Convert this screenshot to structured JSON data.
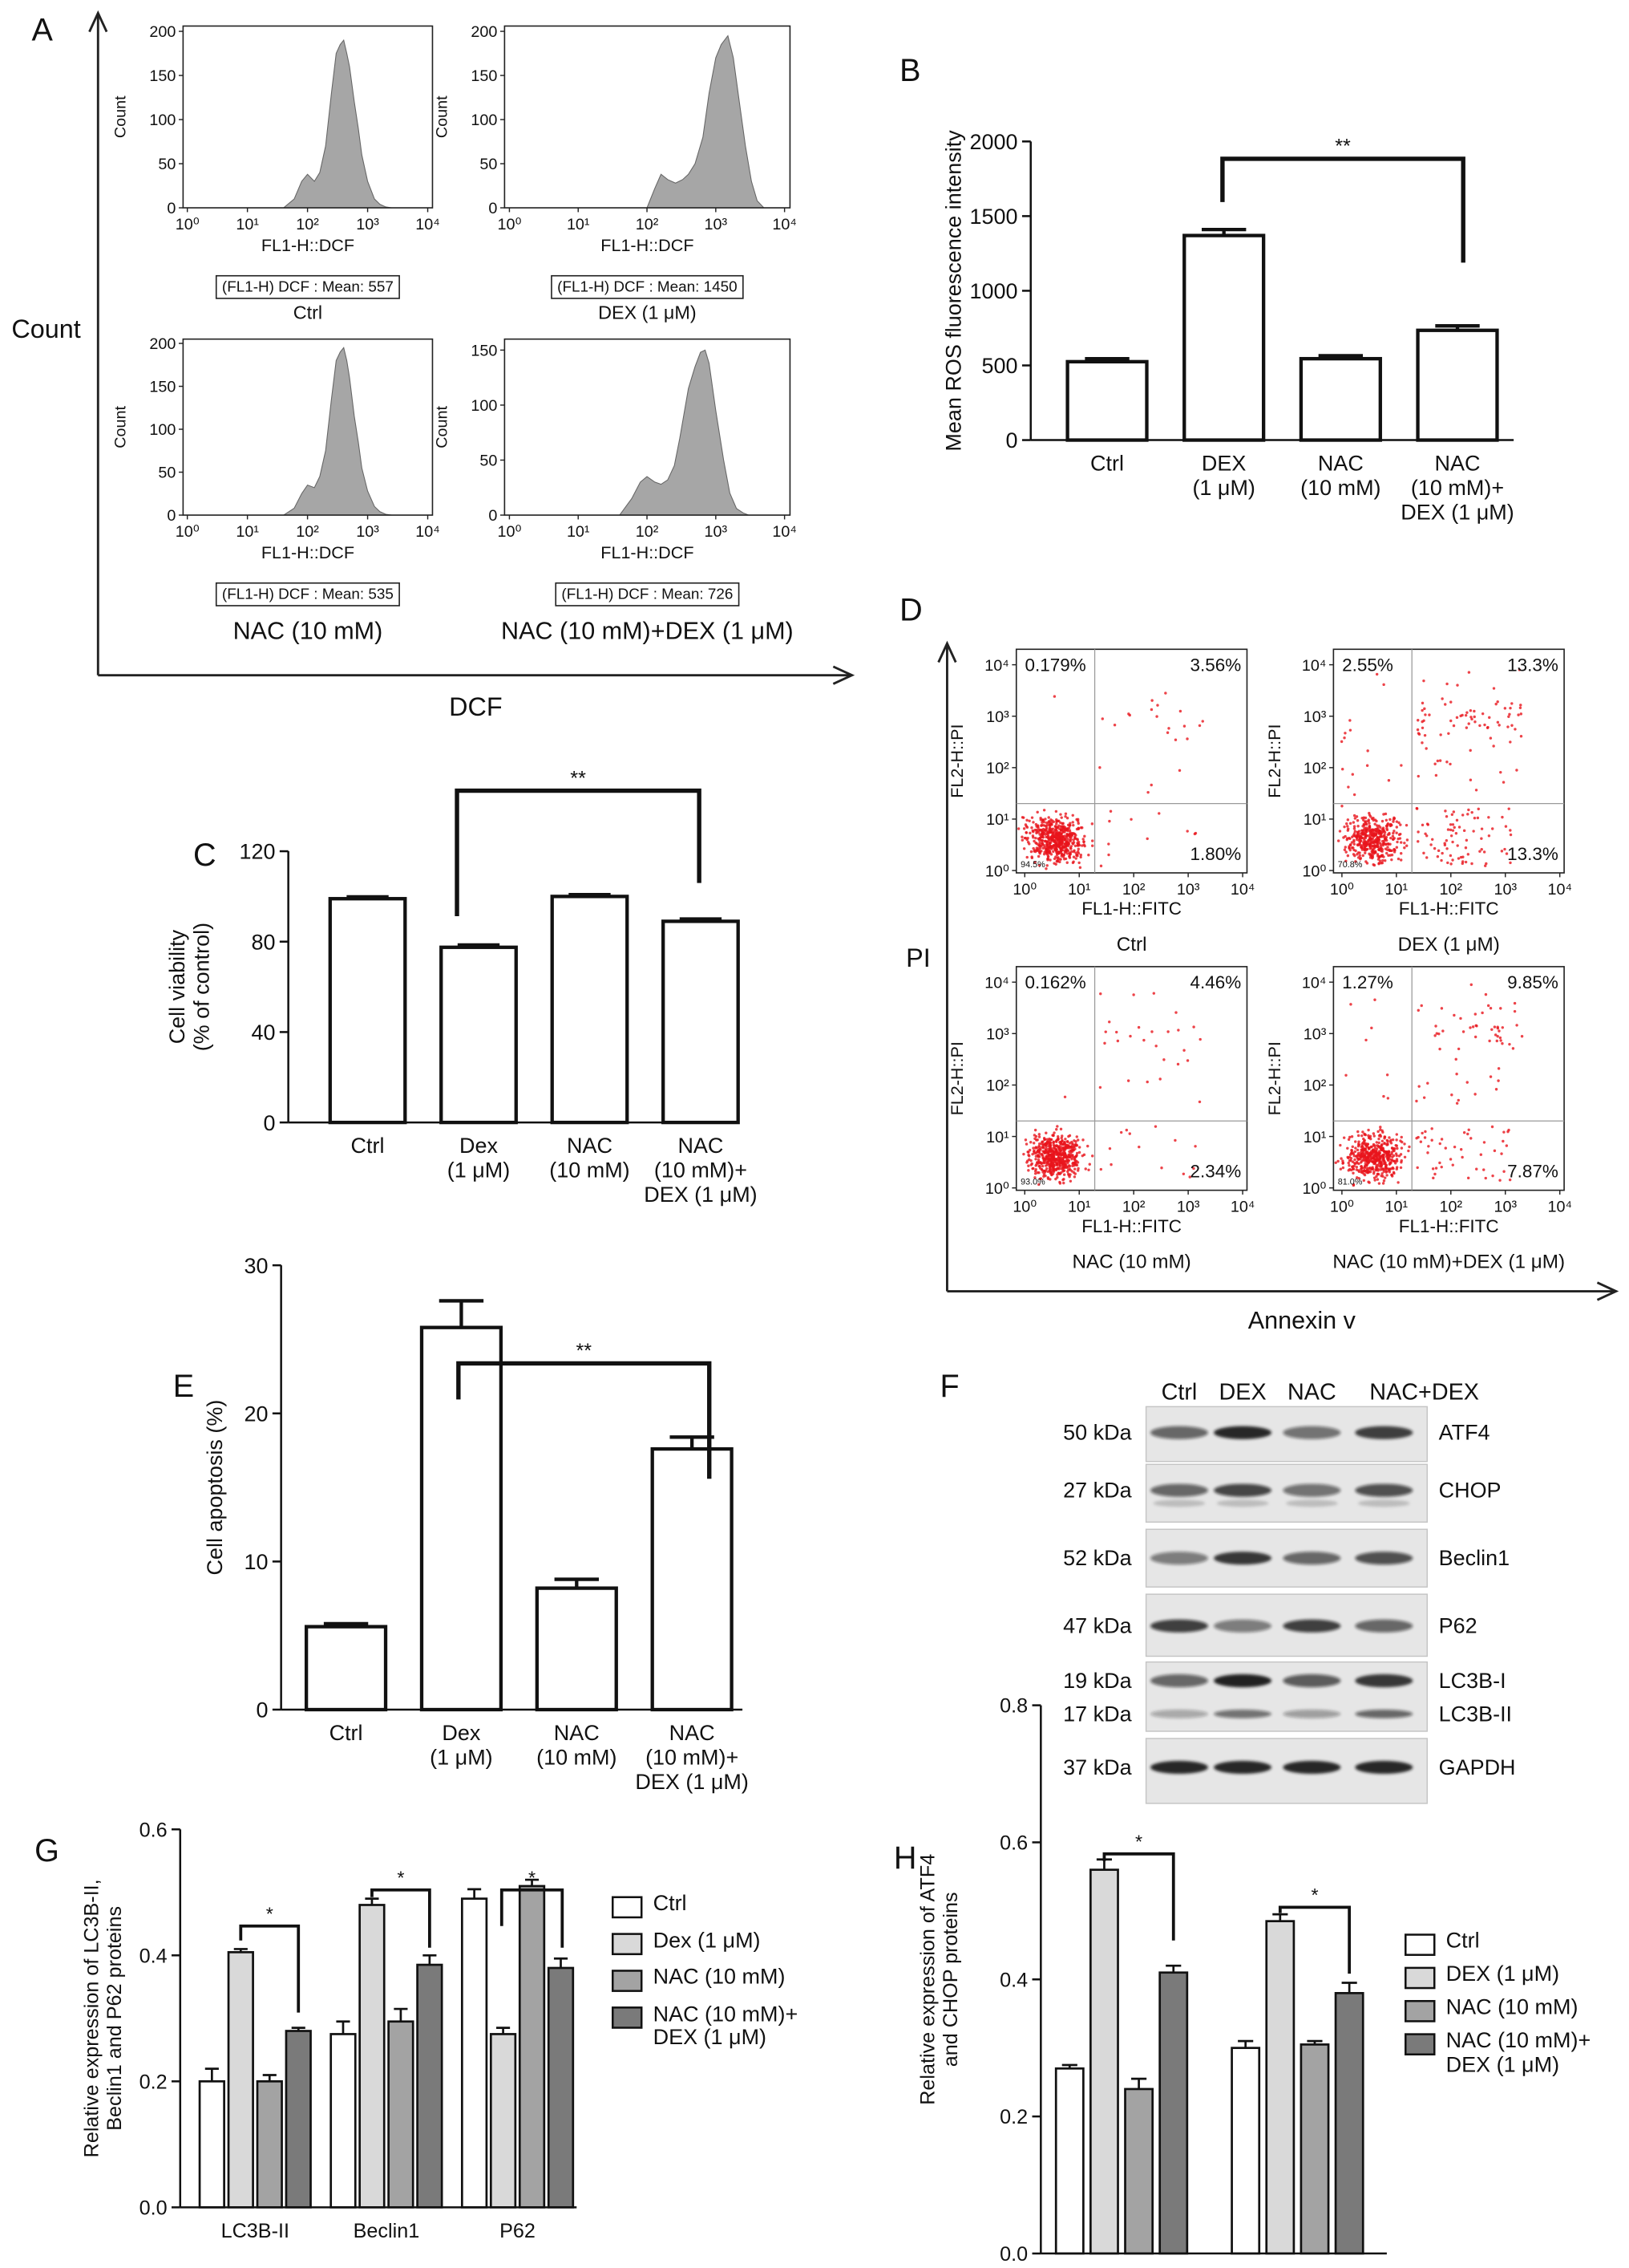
{
  "panel_A": {
    "label": "A",
    "ylabel": "Count",
    "xlabel": "DCF"
  },
  "panel_D": {
    "label": "D",
    "ylabel": "PI",
    "xlabel": "Annexin v"
  },
  "panel_F": {
    "label": "F",
    "lanes": [
      "Ctrl",
      "DEX",
      "NAC",
      "NAC+DEX"
    ],
    "rows": [
      {
        "marker": "50 kDa",
        "protein": "ATF4"
      },
      {
        "marker": "27 kDa",
        "protein": "CHOP"
      },
      {
        "marker": "52 kDa",
        "protein": "Beclin1"
      },
      {
        "marker": "47 kDa",
        "protein": "P62"
      },
      {
        "marker": "19 kDa",
        "protein": "LC3B-I"
      },
      {
        "marker": "17 kDa",
        "protein": "LC3B-II"
      },
      {
        "marker": "37 kDa",
        "protein": "GAPDH"
      }
    ]
  },
  "chart_data": [
    {
      "type": "area",
      "x": [
        40,
        60,
        80,
        100,
        130,
        160,
        200,
        250,
        300,
        350,
        400,
        450,
        500,
        600,
        700,
        800,
        1000,
        1300,
        1600,
        2000,
        2500
      ],
      "values": [
        0,
        10,
        30,
        38,
        30,
        40,
        70,
        130,
        175,
        185,
        190,
        175,
        160,
        120,
        90,
        60,
        30,
        10,
        4,
        1,
        0
      ],
      "color": "#a6a6a6",
      "xlabel": "FL1-H::DCF",
      "ylabel": "Count",
      "annotation": "(FL1-H) DCF : Mean: 557",
      "caption": "Ctrl",
      "log_x": true,
      "xlim": [
        0.85,
        12000
      ],
      "xticks": [
        {
          "value": 1,
          "label": "10⁰"
        },
        {
          "value": 10,
          "label": "10¹"
        },
        {
          "value": 100,
          "label": "10²"
        },
        {
          "value": 1000,
          "label": "10³"
        },
        {
          "value": 10000,
          "label": "10⁴"
        }
      ],
      "ylim": [
        0,
        206
      ],
      "yticks": [
        0,
        50,
        100,
        150,
        200
      ]
    },
    {
      "type": "area",
      "x": [
        100,
        130,
        160,
        200,
        260,
        330,
        400,
        500,
        650,
        800,
        1000,
        1200,
        1500,
        1800,
        2200,
        2700,
        3300,
        4000,
        5000
      ],
      "values": [
        0,
        22,
        38,
        32,
        28,
        32,
        38,
        50,
        80,
        130,
        170,
        185,
        195,
        170,
        120,
        70,
        30,
        8,
        0
      ],
      "color": "#a6a6a6",
      "xlabel": "FL1-H::DCF",
      "ylabel": "Count",
      "annotation": "(FL1-H) DCF : Mean: 1450",
      "caption": "DEX (1 μM)",
      "log_x": true,
      "xlim": [
        0.85,
        12000
      ],
      "xticks": [
        {
          "value": 1,
          "label": "10⁰"
        },
        {
          "value": 10,
          "label": "10¹"
        },
        {
          "value": 100,
          "label": "10²"
        },
        {
          "value": 1000,
          "label": "10³"
        },
        {
          "value": 10000,
          "label": "10⁴"
        }
      ],
      "ylim": [
        0,
        206
      ],
      "yticks": [
        0,
        50,
        100,
        150,
        200
      ]
    },
    {
      "type": "area",
      "x": [
        40,
        60,
        80,
        100,
        130,
        160,
        200,
        250,
        300,
        350,
        400,
        450,
        500,
        600,
        700,
        800,
        1000,
        1300,
        1600,
        2000,
        2500
      ],
      "values": [
        0,
        8,
        25,
        35,
        32,
        45,
        75,
        135,
        180,
        190,
        195,
        180,
        160,
        115,
        85,
        55,
        28,
        10,
        4,
        1,
        0
      ],
      "color": "#a6a6a6",
      "xlabel": "FL1-H::DCF",
      "ylabel": "Count",
      "annotation": "(FL1-H) DCF : Mean: 535",
      "caption": "NAC (10 mM)",
      "log_x": true,
      "xlim": [
        0.85,
        12000
      ],
      "xticks": [
        {
          "value": 1,
          "label": "10⁰"
        },
        {
          "value": 10,
          "label": "10¹"
        },
        {
          "value": 100,
          "label": "10²"
        },
        {
          "value": 1000,
          "label": "10³"
        },
        {
          "value": 10000,
          "label": "10⁴"
        }
      ],
      "ylim": [
        0,
        205
      ],
      "yticks": [
        0,
        50,
        100,
        150,
        200
      ]
    },
    {
      "type": "area",
      "x": [
        40,
        60,
        80,
        100,
        130,
        160,
        200,
        250,
        300,
        400,
        500,
        600,
        700,
        800,
        1000,
        1300,
        1600,
        2000,
        2500,
        3000
      ],
      "values": [
        0,
        15,
        30,
        35,
        30,
        28,
        32,
        45,
        70,
        115,
        135,
        148,
        150,
        138,
        95,
        50,
        20,
        6,
        2,
        0
      ],
      "color": "#a6a6a6",
      "xlabel": "FL1-H::DCF",
      "ylabel": "Count",
      "annotation": "(FL1-H) DCF : Mean: 726",
      "caption": "NAC (10 mM)+DEX (1 μM)",
      "log_x": true,
      "xlim": [
        0.85,
        12000
      ],
      "xticks": [
        {
          "value": 1,
          "label": "10⁰"
        },
        {
          "value": 10,
          "label": "10¹"
        },
        {
          "value": 100,
          "label": "10²"
        },
        {
          "value": 1000,
          "label": "10³"
        },
        {
          "value": 10000,
          "label": "10⁴"
        }
      ],
      "ylim": [
        0,
        160
      ],
      "yticks": [
        0,
        50,
        100,
        150
      ]
    },
    {
      "type": "bar",
      "panel": "B",
      "categories": [
        "Ctrl",
        "DEX\n(1 μM)",
        "NAC\n(10 mM)",
        "NAC\n(10 mM)+\nDEX (1 μM)"
      ],
      "values": [
        525,
        1370,
        545,
        735
      ],
      "errors": [
        20,
        40,
        20,
        30
      ],
      "color": "#ffffff",
      "ylabel": "Mean ROS fluorescence intensity",
      "ylim": [
        0,
        2000
      ],
      "yticks": [
        0,
        500,
        1000,
        1500,
        2000
      ],
      "significance": [
        "**"
      ]
    },
    {
      "type": "bar",
      "panel": "C",
      "categories": [
        "Ctrl",
        "Dex\n(1 μM)",
        "NAC\n(10 mM)",
        "NAC\n(10 mM)+\nDEX (1 μM)"
      ],
      "values": [
        99,
        77.5,
        100,
        89
      ],
      "errors": [
        0.8,
        1,
        0.8,
        1
      ],
      "color": "#ffffff",
      "ylabel": "Cell viability\n(% of control)",
      "ylim": [
        0,
        120
      ],
      "yticks": [
        0,
        40,
        80,
        120
      ],
      "significance": [
        "**"
      ]
    },
    {
      "type": "quadrant",
      "xlabel": "FL1-H::FITC",
      "ylabel": "FL2-H::PI",
      "caption": "Ctrl",
      "values": [
        0.179,
        3.56,
        1.8,
        94.5
      ],
      "value_labels": [
        "0.179%",
        "3.56%",
        "1.80%",
        "94.5%"
      ],
      "color": "#e8141b",
      "log_x": true,
      "log_y": true,
      "xlim": [
        0.7,
        12000
      ],
      "ylim": [
        0.9,
        20000
      ],
      "xticks": [
        {
          "value": 1,
          "label": "10⁰"
        },
        {
          "value": 10,
          "label": "10¹"
        },
        {
          "value": 100,
          "label": "10²"
        },
        {
          "value": 1000,
          "label": "10³"
        },
        {
          "value": 10000,
          "label": "10⁴"
        }
      ],
      "yticks": [
        {
          "value": 1,
          "label": "10⁰"
        },
        {
          "value": 10,
          "label": "10¹"
        },
        {
          "value": 100,
          "label": "10²"
        },
        {
          "value": 1000,
          "label": "10³"
        },
        {
          "value": 10000,
          "label": "10⁴"
        }
      ]
    },
    {
      "type": "quadrant",
      "xlabel": "FL1-H::FITC",
      "ylabel": "FL2-H::PI",
      "caption": "DEX (1 μM)",
      "values": [
        2.55,
        13.3,
        13.3,
        70.8
      ],
      "value_labels": [
        "2.55%",
        "13.3%",
        "13.3%",
        "70.8%"
      ],
      "color": "#e8141b",
      "log_x": true,
      "log_y": true,
      "xlim": [
        0.7,
        12000
      ],
      "ylim": [
        0.9,
        20000
      ],
      "xticks": [
        {
          "value": 1,
          "label": "10⁰"
        },
        {
          "value": 10,
          "label": "10¹"
        },
        {
          "value": 100,
          "label": "10²"
        },
        {
          "value": 1000,
          "label": "10³"
        },
        {
          "value": 10000,
          "label": "10⁴"
        }
      ],
      "yticks": [
        {
          "value": 1,
          "label": "10⁰"
        },
        {
          "value": 10,
          "label": "10¹"
        },
        {
          "value": 100,
          "label": "10²"
        },
        {
          "value": 1000,
          "label": "10³"
        },
        {
          "value": 10000,
          "label": "10⁴"
        }
      ]
    },
    {
      "type": "quadrant",
      "xlabel": "FL1-H::FITC",
      "ylabel": "FL2-H::PI",
      "caption": "NAC (10 mM)",
      "values": [
        0.162,
        4.46,
        2.34,
        93.0
      ],
      "value_labels": [
        "0.162%",
        "4.46%",
        "2.34%",
        "93.0%"
      ],
      "color": "#e8141b",
      "log_x": true,
      "log_y": true,
      "xlim": [
        0.7,
        12000
      ],
      "ylim": [
        0.9,
        20000
      ],
      "xticks": [
        {
          "value": 1,
          "label": "10⁰"
        },
        {
          "value": 10,
          "label": "10¹"
        },
        {
          "value": 100,
          "label": "10²"
        },
        {
          "value": 1000,
          "label": "10³"
        },
        {
          "value": 10000,
          "label": "10⁴"
        }
      ],
      "yticks": [
        {
          "value": 1,
          "label": "10⁰"
        },
        {
          "value": 10,
          "label": "10¹"
        },
        {
          "value": 100,
          "label": "10²"
        },
        {
          "value": 1000,
          "label": "10³"
        },
        {
          "value": 10000,
          "label": "10⁴"
        }
      ]
    },
    {
      "type": "quadrant",
      "xlabel": "FL1-H::FITC",
      "ylabel": "FL2-H::PI",
      "caption": "NAC (10 mM)+DEX (1 μM)",
      "values": [
        1.27,
        9.85,
        7.87,
        81.0
      ],
      "value_labels": [
        "1.27%",
        "9.85%",
        "7.87%",
        "81.0%"
      ],
      "color": "#e8141b",
      "log_x": true,
      "log_y": true,
      "xlim": [
        0.7,
        12000
      ],
      "ylim": [
        0.9,
        20000
      ],
      "xticks": [
        {
          "value": 1,
          "label": "10⁰"
        },
        {
          "value": 10,
          "label": "10¹"
        },
        {
          "value": 100,
          "label": "10²"
        },
        {
          "value": 1000,
          "label": "10³"
        },
        {
          "value": 10000,
          "label": "10⁴"
        }
      ],
      "yticks": [
        {
          "value": 1,
          "label": "10⁰"
        },
        {
          "value": 10,
          "label": "10¹"
        },
        {
          "value": 100,
          "label": "10²"
        },
        {
          "value": 1000,
          "label": "10³"
        },
        {
          "value": 10000,
          "label": "10⁴"
        }
      ]
    },
    {
      "type": "bar",
      "panel": "E",
      "categories": [
        "Ctrl",
        "Dex\n(1 μM)",
        "NAC\n(10 mM)",
        "NAC\n(10 mM)+\nDEX (1 μM)"
      ],
      "values": [
        5.6,
        25.8,
        8.2,
        17.6
      ],
      "errors": [
        0.2,
        1.8,
        0.6,
        0.8
      ],
      "color": "#ffffff",
      "ylabel": "Cell apoptosis (%)",
      "ylim": [
        0,
        30
      ],
      "yticks": [
        0,
        10,
        20,
        30
      ],
      "significance": [
        "**"
      ]
    },
    {
      "type": "grouped_bar",
      "panel": "G",
      "categories": [
        "LC3B-II",
        "Beclin1",
        "P62"
      ],
      "series": [
        {
          "name": "Ctrl",
          "color": "#ffffff",
          "values": [
            0.2,
            0.275,
            0.49
          ],
          "errors": [
            0.02,
            0.02,
            0.015
          ]
        },
        {
          "name": "Dex (1 μM)",
          "color": "#d9d9d9",
          "values": [
            0.405,
            0.48,
            0.275
          ],
          "errors": [
            0.005,
            0.01,
            0.01
          ]
        },
        {
          "name": "NAC (10 mM)",
          "color": "#a3a3a3",
          "values": [
            0.2,
            0.295,
            0.51
          ],
          "errors": [
            0.01,
            0.02,
            0.01
          ]
        },
        {
          "name": "NAC (10 mM)+\nDEX (1 μM)",
          "color": "#7a7a7a",
          "values": [
            0.28,
            0.385,
            0.38
          ],
          "errors": [
            0.005,
            0.015,
            0.015
          ]
        }
      ],
      "ylabel": "Relative expression of LC3B-II,\nBeclin1 and P62 proteins",
      "ylim": [
        0,
        0.6
      ],
      "yticks": [
        {
          "value": 0,
          "label": "0.0"
        },
        0.2,
        0.4,
        0.6
      ],
      "significance": [
        "*",
        "*",
        "*"
      ]
    },
    {
      "type": "grouped_bar",
      "panel": "H",
      "categories": [
        "ATF4",
        "CHOP"
      ],
      "series": [
        {
          "name": "Ctrl",
          "color": "#ffffff",
          "values": [
            0.27,
            0.3
          ],
          "errors": [
            0.005,
            0.01
          ]
        },
        {
          "name": "DEX (1 μM)",
          "color": "#d9d9d9",
          "values": [
            0.56,
            0.485
          ],
          "errors": [
            0.015,
            0.01
          ]
        },
        {
          "name": "NAC (10 mM)",
          "color": "#a3a3a3",
          "values": [
            0.24,
            0.305
          ],
          "errors": [
            0.015,
            0.005
          ]
        },
        {
          "name": "NAC (10 mM)+\nDEX (1 μM)",
          "color": "#7a7a7a",
          "values": [
            0.41,
            0.38
          ],
          "errors": [
            0.01,
            0.015
          ]
        }
      ],
      "ylabel": "Relative expression of ATF4\nand CHOP proteins",
      "ylim": [
        0,
        0.8
      ],
      "yticks": [
        {
          "value": 0,
          "label": "0.0"
        },
        0.2,
        0.4,
        0.6,
        0.8
      ],
      "significance": [
        "*",
        "*"
      ]
    }
  ]
}
